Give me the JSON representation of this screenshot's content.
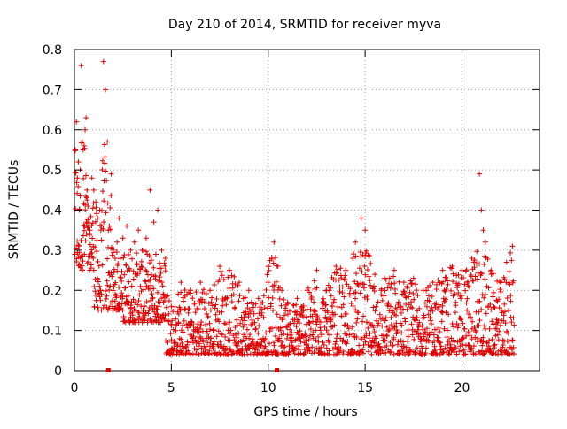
{
  "chart_data": {
    "type": "scatter",
    "title": "Day 210 of 2014, SRMTID for receiver myva",
    "xlabel": "GPS time / hours",
    "ylabel": "SRMTID / TECUs",
    "xlim": [
      0,
      24
    ],
    "ylim": [
      0,
      0.8
    ],
    "x_ticks": [
      0,
      5,
      10,
      15,
      20
    ],
    "y_ticks": [
      0,
      0.1,
      0.2,
      0.3,
      0.4,
      0.5,
      0.6,
      0.7,
      0.8
    ],
    "x_tick_labels": [
      "0",
      "5",
      "10",
      "15",
      "20"
    ],
    "y_tick_labels": [
      "0",
      "0.1",
      "0.2",
      "0.3",
      "0.4",
      "0.5",
      "0.6",
      "0.7",
      "0.8"
    ],
    "grid": true,
    "marker": "plus",
    "color": "#e00000",
    "series": [
      {
        "name": "SRMTID",
        "points_note": "Dense scatter of roughly 2000 samples; values listed are representative envelope samples.",
        "x": [
          0.05,
          0.1,
          0.15,
          0.2,
          0.25,
          0.3,
          0.35,
          0.4,
          0.45,
          0.5,
          0.55,
          0.6,
          0.65,
          0.7,
          0.8,
          0.9,
          1.0,
          1.1,
          1.2,
          1.3,
          1.4,
          1.5,
          1.6,
          1.7,
          1.75,
          1.8,
          1.9,
          2.0,
          2.1,
          2.2,
          2.3,
          2.5,
          2.7,
          2.9,
          3.1,
          3.3,
          3.5,
          3.7,
          3.9,
          4.1,
          4.3,
          4.5,
          4.7,
          5.0,
          5.5,
          6.0,
          6.5,
          7.0,
          7.5,
          8.0,
          8.5,
          9.0,
          9.5,
          10.0,
          10.3,
          10.5,
          10.7,
          11.0,
          11.5,
          12.0,
          12.5,
          13.0,
          13.5,
          14.0,
          14.5,
          14.8,
          15.0,
          15.5,
          16.0,
          16.5,
          17.0,
          17.5,
          18.0,
          18.5,
          19.0,
          19.5,
          20.0,
          20.5,
          20.9,
          21.0,
          21.1,
          21.2,
          21.5,
          22.0,
          22.3,
          22.6
        ],
        "y": [
          0.55,
          0.62,
          0.48,
          0.52,
          0.4,
          0.5,
          0.76,
          0.57,
          0.55,
          0.56,
          0.6,
          0.63,
          0.45,
          0.41,
          0.35,
          0.48,
          0.45,
          0.42,
          0.38,
          0.4,
          0.36,
          0.77,
          0.7,
          0.57,
          0.35,
          0.36,
          0.49,
          0.3,
          0.28,
          0.32,
          0.38,
          0.33,
          0.36,
          0.3,
          0.32,
          0.35,
          0.3,
          0.33,
          0.45,
          0.37,
          0.4,
          0.3,
          0.28,
          0.16,
          0.22,
          0.2,
          0.22,
          0.2,
          0.26,
          0.25,
          0.22,
          0.2,
          0.18,
          0.26,
          0.32,
          0.26,
          0.2,
          0.17,
          0.18,
          0.2,
          0.25,
          0.2,
          0.26,
          0.25,
          0.32,
          0.38,
          0.35,
          0.24,
          0.23,
          0.25,
          0.22,
          0.23,
          0.2,
          0.22,
          0.25,
          0.26,
          0.25,
          0.28,
          0.49,
          0.4,
          0.35,
          0.32,
          0.25,
          0.22,
          0.27,
          0.31
        ]
      }
    ]
  }
}
